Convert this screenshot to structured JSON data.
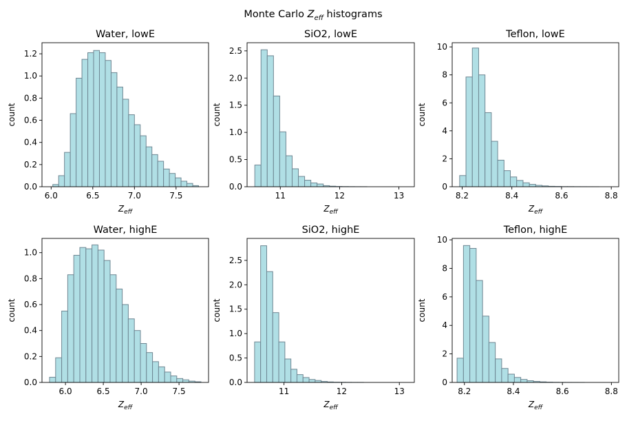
{
  "figure": {
    "title_prefix": "Monte Carlo ",
    "title_symbol": "Z",
    "title_subscript": "eff",
    "title_suffix": " histograms"
  },
  "colors": {
    "bar_fill": "#b0dfe5",
    "bar_edge": "#6e8692"
  },
  "chart_data": [
    {
      "type": "bar",
      "title": "Water, lowE",
      "xlabel": "Z_eff",
      "xlabel_symbol": "Z",
      "xlabel_subscript": "eff",
      "ylabel": "count",
      "xlim": [
        5.89,
        7.89
      ],
      "ylim": [
        0,
        1.3
      ],
      "xticks": [
        6.0,
        6.5,
        7.0,
        7.5
      ],
      "xtick_labels": [
        "6.0",
        "6.5",
        "7.0",
        "7.5"
      ],
      "yticks": [
        0.0,
        0.2,
        0.4,
        0.6,
        0.8,
        1.0,
        1.2
      ],
      "ytick_labels": [
        "0.0",
        "0.2",
        "0.4",
        "0.6",
        "0.8",
        "1.0",
        "1.2"
      ],
      "bin_edges": [
        6.02,
        6.09,
        6.16,
        6.23,
        6.3,
        6.37,
        6.44,
        6.51,
        6.58,
        6.65,
        6.72,
        6.79,
        6.86,
        6.93,
        7.0,
        7.07,
        7.14,
        7.21,
        7.28,
        7.35,
        7.42,
        7.49,
        7.56,
        7.63,
        7.7,
        7.77
      ],
      "counts": [
        0.02,
        0.1,
        0.31,
        0.66,
        0.98,
        1.15,
        1.21,
        1.23,
        1.21,
        1.14,
        1.03,
        0.9,
        0.79,
        0.65,
        0.56,
        0.46,
        0.36,
        0.29,
        0.23,
        0.16,
        0.12,
        0.08,
        0.05,
        0.03,
        0.01
      ]
    },
    {
      "type": "bar",
      "title": "SiO2, lowE",
      "xlabel": "Z_eff",
      "xlabel_symbol": "Z",
      "xlabel_subscript": "eff",
      "ylabel": "count",
      "xlim": [
        10.44,
        13.26
      ],
      "ylim": [
        0,
        2.65
      ],
      "xticks": [
        11,
        12,
        13
      ],
      "xtick_labels": [
        "11",
        "12",
        "13"
      ],
      "yticks": [
        0.0,
        0.5,
        1.0,
        1.5,
        2.0,
        2.5
      ],
      "ytick_labels": [
        "0.0",
        "0.5",
        "1.0",
        "1.5",
        "2.0",
        "2.5"
      ],
      "bin_edges": [
        10.57,
        10.675,
        10.78,
        10.885,
        10.99,
        11.095,
        11.2,
        11.305,
        11.41,
        11.515,
        11.62,
        11.725,
        11.83,
        11.935,
        12.04,
        12.145,
        12.25,
        12.355,
        12.46,
        12.565,
        12.67,
        12.775,
        12.88,
        12.985,
        13.09,
        13.195
      ],
      "counts": [
        0.4,
        2.52,
        2.41,
        1.67,
        1.01,
        0.57,
        0.33,
        0.19,
        0.12,
        0.07,
        0.05,
        0.02,
        0.01,
        0.005,
        0.003,
        0.002,
        0.001,
        0.001,
        0.0,
        0.0,
        0.0,
        0.0,
        0.0,
        0.0,
        0.0
      ]
    },
    {
      "type": "bar",
      "title": "Teflon, lowE",
      "xlabel": "Z_eff",
      "xlabel_symbol": "Z",
      "xlabel_subscript": "eff",
      "ylabel": "count",
      "xlim": [
        8.16,
        8.83
      ],
      "ylim": [
        0,
        10.3
      ],
      "xticks": [
        8.2,
        8.4,
        8.6,
        8.8
      ],
      "xtick_labels": [
        "8.2",
        "8.4",
        "8.6",
        "8.8"
      ],
      "yticks": [
        0,
        2,
        4,
        6,
        8,
        10
      ],
      "ytick_labels": [
        "0",
        "2",
        "4",
        "6",
        "8",
        "10"
      ],
      "bin_edges": [
        8.19,
        8.2155,
        8.241,
        8.2665,
        8.292,
        8.3175,
        8.343,
        8.3685,
        8.394,
        8.4195,
        8.445,
        8.4705,
        8.496,
        8.5215,
        8.547,
        8.5725,
        8.598,
        8.6235,
        8.649,
        8.6745,
        8.7,
        8.7255,
        8.751,
        8.7765,
        8.802,
        8.8275
      ],
      "counts": [
        0.8,
        7.85,
        9.92,
        8.0,
        5.3,
        3.25,
        1.9,
        1.15,
        0.7,
        0.45,
        0.28,
        0.17,
        0.1,
        0.06,
        0.03,
        0.02,
        0.01,
        0.01,
        0.005,
        0.003,
        0.002,
        0.001,
        0.0,
        0.0,
        0.0
      ]
    },
    {
      "type": "bar",
      "title": "Water, highE",
      "xlabel": "Z_eff",
      "xlabel_symbol": "Z",
      "xlabel_subscript": "eff",
      "ylabel": "count",
      "xlim": [
        5.69,
        7.89
      ],
      "ylim": [
        0,
        1.11
      ],
      "xticks": [
        6.0,
        6.5,
        7.0,
        7.5
      ],
      "xtick_labels": [
        "6.0",
        "6.5",
        "7.0",
        "7.5"
      ],
      "yticks": [
        0.0,
        0.2,
        0.4,
        0.6,
        0.8,
        1.0
      ],
      "ytick_labels": [
        "0.0",
        "0.2",
        "0.4",
        "0.6",
        "0.8",
        "1.0"
      ],
      "bin_edges": [
        5.79,
        5.87,
        5.95,
        6.03,
        6.11,
        6.19,
        6.27,
        6.35,
        6.43,
        6.51,
        6.59,
        6.67,
        6.75,
        6.83,
        6.91,
        6.99,
        7.07,
        7.15,
        7.23,
        7.31,
        7.39,
        7.47,
        7.55,
        7.63,
        7.71,
        7.79
      ],
      "counts": [
        0.04,
        0.19,
        0.55,
        0.83,
        0.98,
        1.04,
        1.03,
        1.06,
        1.02,
        0.94,
        0.83,
        0.72,
        0.6,
        0.49,
        0.4,
        0.3,
        0.23,
        0.16,
        0.12,
        0.08,
        0.05,
        0.03,
        0.02,
        0.01,
        0.005
      ]
    },
    {
      "type": "bar",
      "title": "SiO2, highE",
      "xlabel": "Z_eff",
      "xlabel_symbol": "Z",
      "xlabel_subscript": "eff",
      "ylabel": "count",
      "xlim": [
        10.36,
        13.26
      ],
      "ylim": [
        0,
        2.95
      ],
      "xticks": [
        11,
        12,
        13
      ],
      "xtick_labels": [
        "11",
        "12",
        "13"
      ],
      "yticks": [
        0.0,
        0.5,
        1.0,
        1.5,
        2.0,
        2.5
      ],
      "ytick_labels": [
        "0.0",
        "0.5",
        "1.0",
        "1.5",
        "2.0",
        "2.5"
      ],
      "bin_edges": [
        10.49,
        10.595,
        10.7,
        10.805,
        10.91,
        11.015,
        11.12,
        11.225,
        11.33,
        11.435,
        11.54,
        11.645,
        11.75,
        11.855,
        11.96,
        12.065,
        12.17,
        12.275,
        12.38,
        12.485,
        12.59,
        12.695,
        12.8,
        12.905,
        13.01,
        13.115
      ],
      "counts": [
        0.83,
        2.8,
        2.27,
        1.43,
        0.83,
        0.48,
        0.27,
        0.16,
        0.1,
        0.06,
        0.04,
        0.02,
        0.01,
        0.005,
        0.003,
        0.002,
        0.001,
        0.001,
        0.0,
        0.0,
        0.0,
        0.0,
        0.0,
        0.0,
        0.0
      ]
    },
    {
      "type": "bar",
      "title": "Teflon, highE",
      "xlabel": "Z_eff",
      "xlabel_symbol": "Z",
      "xlabel_subscript": "eff",
      "ylabel": "count",
      "xlim": [
        8.15,
        8.83
      ],
      "ylim": [
        0,
        10.1
      ],
      "xticks": [
        8.2,
        8.4,
        8.6,
        8.8
      ],
      "xtick_labels": [
        "8.2",
        "8.4",
        "8.6",
        "8.8"
      ],
      "yticks": [
        0,
        2,
        4,
        6,
        8,
        10
      ],
      "ytick_labels": [
        "0",
        "2",
        "4",
        "6",
        "8",
        "10"
      ],
      "bin_edges": [
        8.17,
        8.196,
        8.222,
        8.248,
        8.274,
        8.3,
        8.326,
        8.352,
        8.378,
        8.404,
        8.43,
        8.456,
        8.482,
        8.508,
        8.534,
        8.56,
        8.586,
        8.612,
        8.638,
        8.664,
        8.69,
        8.716,
        8.742,
        8.768,
        8.794,
        8.82
      ],
      "counts": [
        1.7,
        9.6,
        9.4,
        7.15,
        4.65,
        2.8,
        1.65,
        0.98,
        0.58,
        0.35,
        0.21,
        0.12,
        0.07,
        0.04,
        0.02,
        0.01,
        0.005,
        0.003,
        0.002,
        0.001,
        0.0,
        0.0,
        0.0,
        0.0,
        0.0
      ]
    }
  ]
}
